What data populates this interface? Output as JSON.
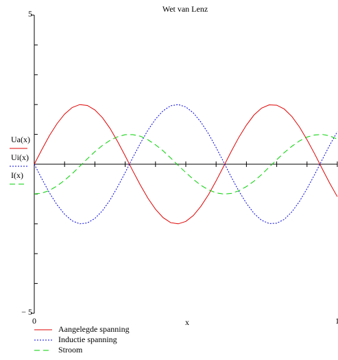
{
  "chart_data": {
    "type": "line",
    "title": "Wet van Lenz",
    "x_label": "x",
    "y_labels": [
      "Ua(x)",
      "Ui(x)",
      "I(x)"
    ],
    "x": [
      0,
      0.025,
      0.05,
      0.075,
      0.1,
      0.125,
      0.15,
      0.175,
      0.2,
      0.225,
      0.25,
      0.275,
      0.3,
      0.325,
      0.35,
      0.375,
      0.4,
      0.425,
      0.45,
      0.475,
      0.5,
      0.525,
      0.55,
      0.575,
      0.6,
      0.625,
      0.65,
      0.675,
      0.7,
      0.725,
      0.75,
      0.775,
      0.8,
      0.825,
      0.85,
      0.875,
      0.9,
      0.925,
      0.95,
      0.975,
      1
    ],
    "series": [
      {
        "name": "Aangelegde spanning",
        "color": "#e00000",
        "dash": "solid",
        "values": [
          0,
          0.49,
          0.96,
          1.36,
          1.68,
          1.9,
          2.0,
          1.97,
          1.82,
          1.56,
          1.2,
          0.76,
          0.28,
          -0.22,
          -0.7,
          -1.14,
          -1.51,
          -1.79,
          -1.96,
          -2.0,
          -1.92,
          -1.72,
          -1.41,
          -1.02,
          -0.56,
          -0.07,
          0.43,
          0.9,
          1.31,
          1.65,
          1.88,
          1.99,
          1.98,
          1.85,
          1.6,
          1.25,
          0.82,
          0.35,
          -0.15,
          -0.64,
          -1.09
        ]
      },
      {
        "name": "Inductie spanning",
        "color": "#0000e0",
        "dash": "dotted",
        "values": [
          0,
          -0.49,
          -0.96,
          -1.36,
          -1.68,
          -1.9,
          -2.0,
          -1.97,
          -1.82,
          -1.56,
          -1.2,
          -0.76,
          -0.28,
          0.22,
          0.7,
          1.14,
          1.51,
          1.79,
          1.96,
          2.0,
          1.92,
          1.72,
          1.41,
          1.02,
          0.56,
          0.07,
          -0.43,
          -0.9,
          -1.31,
          -1.65,
          -1.88,
          -1.99,
          -1.98,
          -1.85,
          -1.6,
          -1.25,
          -0.82,
          -0.35,
          0.15,
          0.64,
          1.09
        ]
      },
      {
        "name": "Stroom",
        "color": "#00d000",
        "dash": "dashed",
        "values": [
          -1,
          -0.97,
          -0.88,
          -0.73,
          -0.54,
          -0.32,
          -0.07,
          0.18,
          0.42,
          0.63,
          0.8,
          0.92,
          0.99,
          0.99,
          0.94,
          0.82,
          0.65,
          0.45,
          0.21,
          -0.04,
          -0.28,
          -0.51,
          -0.71,
          -0.86,
          -0.96,
          -1.0,
          -0.98,
          -0.89,
          -0.75,
          -0.57,
          -0.35,
          -0.1,
          0.15,
          0.39,
          0.6,
          0.78,
          0.91,
          0.98,
          1.0,
          0.95,
          0.84
        ]
      }
    ],
    "xlim": [
      0,
      1
    ],
    "xticks": [
      0,
      1
    ],
    "x_minor_ticks": [
      0.1,
      0.2,
      0.3,
      0.4,
      0.5,
      0.6,
      0.7,
      0.8,
      0.9
    ],
    "ylim": [
      -5,
      5
    ],
    "yticks": [
      {
        "value": -5,
        "label": "− 5"
      },
      5
    ],
    "y_minor_ticks": [
      -4,
      -3,
      -2,
      -1,
      0,
      1,
      2,
      3,
      4
    ]
  }
}
